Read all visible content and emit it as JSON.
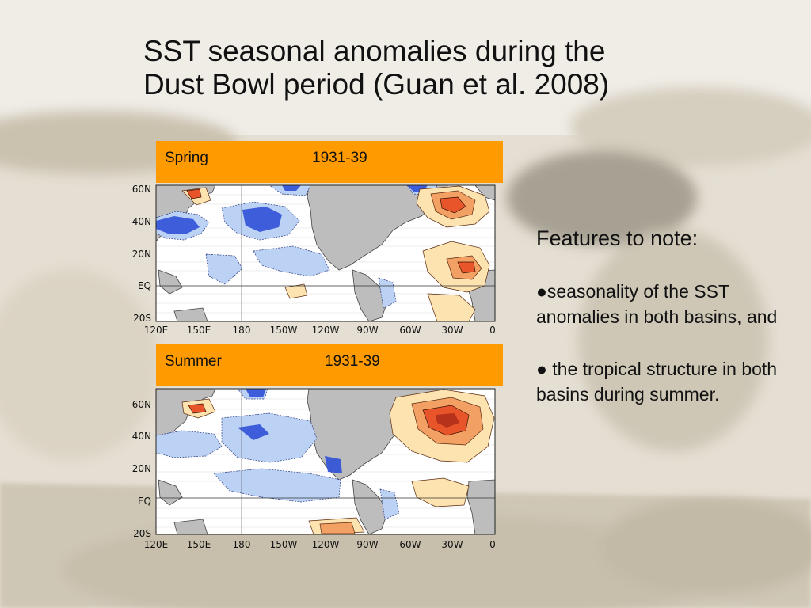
{
  "title": {
    "line1": "SST seasonal anomalies during the",
    "line2": "Dust Bowl period (Guan et al. 2008)"
  },
  "panels": [
    {
      "season": "Spring",
      "years": "1931-39"
    },
    {
      "season": "Summer",
      "years": "1931-39"
    }
  ],
  "map_axes": {
    "lat_labels": [
      "60N",
      "40N",
      "20N",
      "EQ",
      "20S"
    ],
    "lon_labels": [
      "120E",
      "150E",
      "180",
      "150W",
      "120W",
      "90W",
      "60W",
      "30W",
      "0"
    ]
  },
  "notes": {
    "heading": "Features to note:",
    "bullets": [
      "●seasonality of the SST anomalies in both basins, and",
      "● the tropical structure in both basins during summer."
    ]
  },
  "colors": {
    "header_bg": "#ff9a00",
    "cold_anomaly": "#3050d8",
    "cold_light": "#bcd2f5",
    "warm_anomaly": "#e8552a",
    "warm_light": "#fde3b0",
    "land": "#bdbdbd"
  }
}
